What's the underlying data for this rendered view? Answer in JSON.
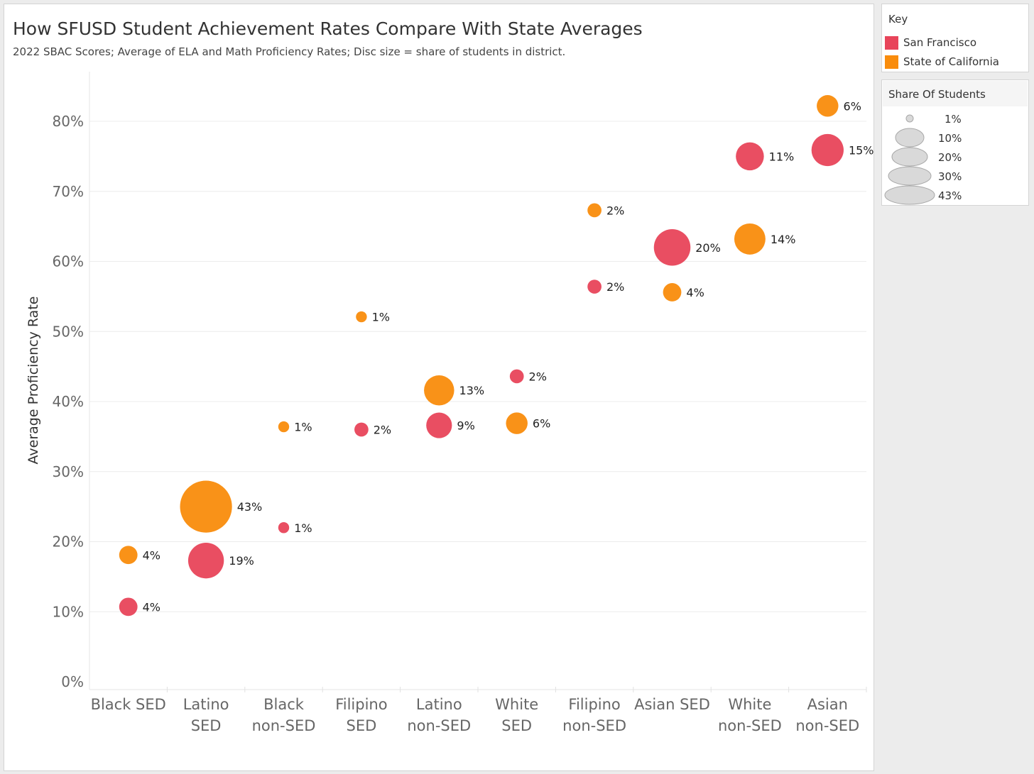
{
  "title": "How SFUSD Student Achievement Rates Compare With State Averages",
  "subtitle": "2022 SBAC Scores; Average of ELA and Math Proficiency Rates; Disc size = share of students in district.",
  "chart_data": {
    "type": "scatter",
    "ylabel": "Average Proficiency Rate",
    "ylim": [
      0,
      0.85
    ],
    "yticks": [
      0,
      0.1,
      0.2,
      0.3,
      0.4,
      0.5,
      0.6,
      0.7,
      0.8
    ],
    "ytick_labels": [
      "0%",
      "10%",
      "20%",
      "30%",
      "40%",
      "50%",
      "60%",
      "70%",
      "80%"
    ],
    "grid": "horizontal",
    "legend_position": "right",
    "categories": [
      "Black SED",
      "Latino SED",
      "Black non-SED",
      "Filipino SED",
      "Latino non-SED",
      "White SED",
      "Filipino non-SED",
      "Asian SED",
      "White non-SED",
      "Asian non-SED"
    ],
    "category_labels": [
      [
        "Black SED"
      ],
      [
        "Latino",
        "SED"
      ],
      [
        "Black",
        "non-SED"
      ],
      [
        "Filipino",
        "SED"
      ],
      [
        "Latino",
        "non-SED"
      ],
      [
        "White",
        "SED"
      ],
      [
        "Filipino",
        "non-SED"
      ],
      [
        "Asian SED"
      ],
      [
        "White",
        "non-SED"
      ],
      [
        "Asian",
        "non-SED"
      ]
    ],
    "series": [
      {
        "name": "San Francisco",
        "color": "#e8445a",
        "values": [
          0.107,
          0.173,
          0.22,
          0.36,
          0.366,
          0.436,
          0.564,
          0.62,
          0.75,
          0.759
        ],
        "share": [
          4,
          19,
          1,
          2,
          9,
          2,
          2,
          20,
          11,
          15
        ],
        "labels": [
          "4%",
          "19%",
          "1%",
          "2%",
          "9%",
          "2%",
          "2%",
          "20%",
          "11%",
          "15%"
        ]
      },
      {
        "name": "State of California",
        "color": "#f98c0c",
        "values": [
          0.181,
          0.25,
          0.364,
          0.521,
          0.416,
          0.369,
          0.673,
          0.556,
          0.632,
          0.822
        ],
        "share": [
          4,
          43,
          1,
          1,
          13,
          6,
          2,
          4,
          14,
          6
        ],
        "labels": [
          "4%",
          "43%",
          "1%",
          "1%",
          "13%",
          "6%",
          "2%",
          "4%",
          "14%",
          "6%"
        ]
      }
    ]
  },
  "legends": {
    "key_title": "Key",
    "size_title": "Share Of Students",
    "size_values": [
      1,
      10,
      20,
      30,
      43
    ],
    "size_labels": [
      "1%",
      "10%",
      "20%",
      "30%",
      "43%"
    ],
    "size_color": "#d9d9d9"
  }
}
